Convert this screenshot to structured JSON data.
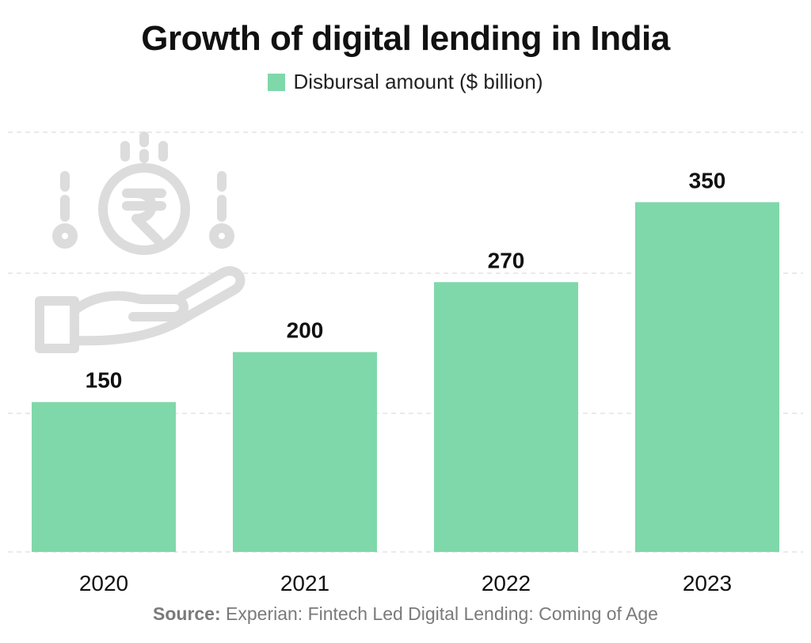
{
  "chart_data": {
    "type": "bar",
    "title": "Growth of digital lending in India",
    "categories": [
      "2020",
      "2021",
      "2022",
      "2023"
    ],
    "series": [
      {
        "name": "Disbursal amount ($ billion)",
        "values": [
          150,
          200,
          270,
          350
        ]
      }
    ],
    "xlabel": "",
    "ylabel": "",
    "ylim": [
      0,
      420
    ],
    "grid": true,
    "legend_position": "top-center",
    "bar_color": "#7fd8aa"
  },
  "source": {
    "label": "Source:",
    "text": "Experian: Fintech Led Digital Lending: Coming of Age"
  },
  "icon": "rupee-coin-hand-icon"
}
